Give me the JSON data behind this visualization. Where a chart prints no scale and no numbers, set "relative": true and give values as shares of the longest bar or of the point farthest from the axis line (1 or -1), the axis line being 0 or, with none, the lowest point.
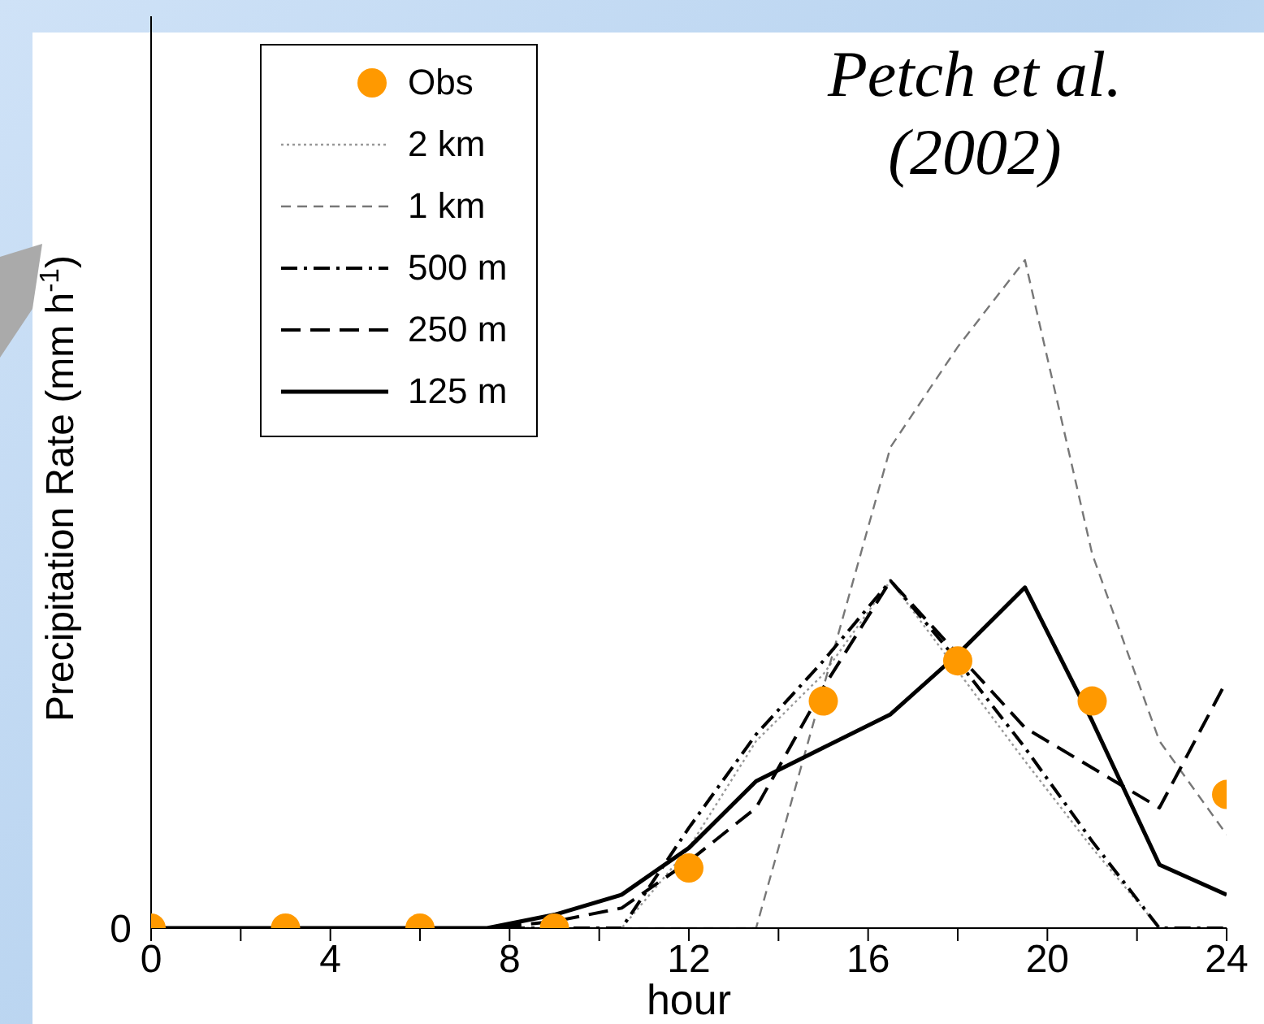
{
  "chart_data": {
    "type": "line",
    "relative": true,
    "annotations": [
      "Petch et al. (2002)",
      "0"
    ],
    "xlabel": "hour",
    "ylabel": "Precipitation Rate (mm h$^{-1}$)",
    "xlim": [
      0,
      24
    ],
    "xticks": [
      0,
      {
        "value": 2,
        "label": null
      },
      4,
      {
        "value": 6,
        "label": null
      },
      8,
      {
        "value": 10,
        "label": null
      },
      12,
      {
        "value": 14,
        "label": null
      },
      16,
      {
        "value": 18,
        "label": null
      },
      20,
      {
        "value": 22,
        "label": null
      },
      24
    ],
    "x": [
      0,
      1.5,
      3,
      4.5,
      6,
      7.5,
      9,
      10.5,
      12,
      13.5,
      15,
      16.5,
      18,
      19.5,
      21,
      22.5,
      24
    ],
    "legend": "top left",
    "grid": false,
    "series": [
      {
        "name": "Obs",
        "type": "scatter",
        "marker": "circle",
        "color": "#ff9900",
        "x": [
          0,
          3,
          6,
          9,
          12,
          15,
          18,
          21,
          24
        ],
        "values": [
          0,
          0,
          0,
          0,
          0.09,
          0.34,
          0.4,
          0.34,
          0.2
        ]
      },
      {
        "name": "2 km",
        "color": "#999999",
        "line_style": "dotted",
        "values": [
          0,
          0,
          0,
          0,
          0,
          0,
          0,
          0,
          0.12,
          0.28,
          0.38,
          0.52,
          null,
          0.25,
          0.12,
          0,
          0
        ]
      },
      {
        "name": "1 km",
        "color": "#777777",
        "line_style": "dashed",
        "values": [
          0,
          0,
          0,
          0,
          0,
          0,
          0,
          0,
          0,
          0,
          0.36,
          0.72,
          0.87,
          1,
          0.56,
          0.28,
          0.14
        ]
      },
      {
        "name": "500 m",
        "color": "#000000",
        "line_style": "dashdot",
        "values": [
          0,
          0,
          0,
          0,
          0,
          0,
          0,
          0,
          0.15,
          0.29,
          0.4,
          0.52,
          0.4,
          0.27,
          0.13,
          0,
          0
        ]
      },
      {
        "name": "250 m",
        "color": "#000000",
        "line_style": "longdash",
        "values": [
          0,
          0,
          0,
          0,
          0,
          0,
          0.01,
          0.03,
          0.1,
          0.18,
          0.36,
          0.52,
          0.41,
          0.3,
          0.24,
          0.18,
          0.37
        ]
      },
      {
        "name": "125 m",
        "color": "#000000",
        "line_style": "solid",
        "values": [
          0,
          0,
          0,
          0,
          0,
          0,
          0.02,
          0.05,
          0.12,
          0.22,
          0.27,
          0.32,
          0.41,
          0.51,
          0.31,
          0.095,
          0.05
        ]
      }
    ]
  }
}
